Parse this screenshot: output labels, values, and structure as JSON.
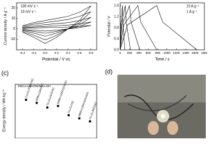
{
  "chart_data": [
    {
      "type": "line",
      "ylabel": "Current density / A g⁻¹",
      "xlabel": "Potential / V vs.",
      "annotations": [
        "100 mV s⁻¹",
        "10 mV s⁻¹"
      ],
      "xlim": [
        -0.5,
        0.9
      ],
      "xticks": [
        -0.4,
        -0.2,
        {
          "value": 0,
          "label": "0.0"
        },
        0.2,
        0.4,
        0.6,
        0.8
      ],
      "ylim": [
        -20,
        25
      ],
      "yticks": [
        -10,
        0,
        10,
        20
      ],
      "series": [
        {
          "color": "#000000",
          "x": [
            -0.4,
            -0.2,
            0,
            0.2,
            0.4,
            0.6,
            0.8,
            0.6,
            0.4,
            0.2,
            0,
            -0.2,
            -0.4
          ],
          "values": [
            3,
            6,
            8,
            10,
            12,
            16,
            22,
            8,
            0,
            -8,
            -14,
            -8,
            -3
          ]
        },
        {
          "color": "#000000",
          "x": [
            -0.4,
            -0.2,
            0,
            0.2,
            0.4,
            0.6,
            0.8,
            0.6,
            0.4,
            0.2,
            0,
            -0.2,
            -0.4
          ],
          "values": [
            2.3,
            4.5,
            6,
            7.5,
            9,
            12,
            16.5,
            6,
            0,
            -6,
            -10.5,
            -6,
            -2.3
          ]
        },
        {
          "color": "#000000",
          "x": [
            -0.4,
            -0.2,
            0,
            0.2,
            0.4,
            0.6,
            0.8,
            0.6,
            0.4,
            0.2,
            0,
            -0.2,
            -0.4
          ],
          "values": [
            1.5,
            3,
            4,
            5,
            6,
            8,
            11,
            4,
            0,
            -4,
            -7,
            -4,
            -1.5
          ]
        },
        {
          "color": "#000000",
          "x": [
            -0.4,
            -0.2,
            0,
            0.2,
            0.4,
            0.6,
            0.8,
            0.6,
            0.4,
            0.2,
            0,
            -0.2,
            -0.4
          ],
          "values": [
            0.9,
            1.8,
            2.4,
            3,
            3.6,
            4.8,
            6.6,
            2.4,
            0,
            -2.4,
            -4.2,
            -2.4,
            -0.9
          ]
        },
        {
          "color": "#000000",
          "x": [
            -0.4,
            -0.2,
            0,
            0.2,
            0.4,
            0.6,
            0.8,
            0.6,
            0.4,
            0.2,
            0,
            -0.2,
            -0.4
          ],
          "values": [
            0.5,
            0.9,
            1.2,
            1.5,
            1.8,
            2.4,
            3.3,
            1.2,
            0,
            -1.2,
            -2.1,
            -1.2,
            -0.5
          ]
        }
      ]
    },
    {
      "type": "line",
      "ylabel": "Potential / V",
      "xlabel": "Time / s",
      "annotations": [
        "10 A g⁻¹",
        "1 A g⁻¹"
      ],
      "xlim": [
        0,
        1800
      ],
      "xticks": [
        0,
        200,
        400,
        600,
        800,
        1000,
        1200,
        1400,
        1600,
        1800
      ],
      "ylim": [
        0,
        1.7
      ],
      "yticks": [
        {
          "value": 0,
          "label": "0.0"
        },
        0.4,
        0.8,
        1.2,
        1.6
      ],
      "series": [
        {
          "color": "#000000",
          "x": [
            0,
            10,
            50,
            58,
            100
          ],
          "values": [
            0,
            0.9,
            1.6,
            1,
            0
          ]
        },
        {
          "color": "#000000",
          "x": [
            0,
            22,
            110,
            127,
            220
          ],
          "values": [
            0,
            0.9,
            1.6,
            1,
            0
          ]
        },
        {
          "color": "#000000",
          "x": [
            0,
            40,
            200,
            233,
            420
          ],
          "values": [
            0,
            0.9,
            1.6,
            1,
            0
          ]
        },
        {
          "color": "#000000",
          "x": [
            0,
            76,
            380,
            440,
            780
          ],
          "values": [
            0,
            0.9,
            1.6,
            1,
            0
          ]
        },
        {
          "color": "#000000",
          "x": [
            0,
            156,
            780,
            909,
            1640
          ],
          "values": [
            0,
            0.9,
            1.6,
            1,
            0
          ]
        }
      ]
    },
    {
      "type": "scatter",
      "panel": "(c)",
      "ylabel": "Energy density / Wh kg⁻¹",
      "title": "MnCo-LDH//Ni/Mn-LOH",
      "categories": [
        "Co₃O₄//CNF//AC",
        "NiMn-LDH//AC",
        "Co₃O₄/rGO//AC",
        "Ni/Mn-LDH/rGO//AC",
        "Co₃O₄//AC",
        "NiMn-LDH/rGO//rGO",
        "Co₃O₄/NiO//AC"
      ],
      "values": [
        50,
        46,
        40,
        42,
        30,
        26,
        22
      ],
      "color": "#000000",
      "ylim": [
        0,
        70
      ]
    }
  ],
  "photo": {
    "label": "(d)"
  }
}
